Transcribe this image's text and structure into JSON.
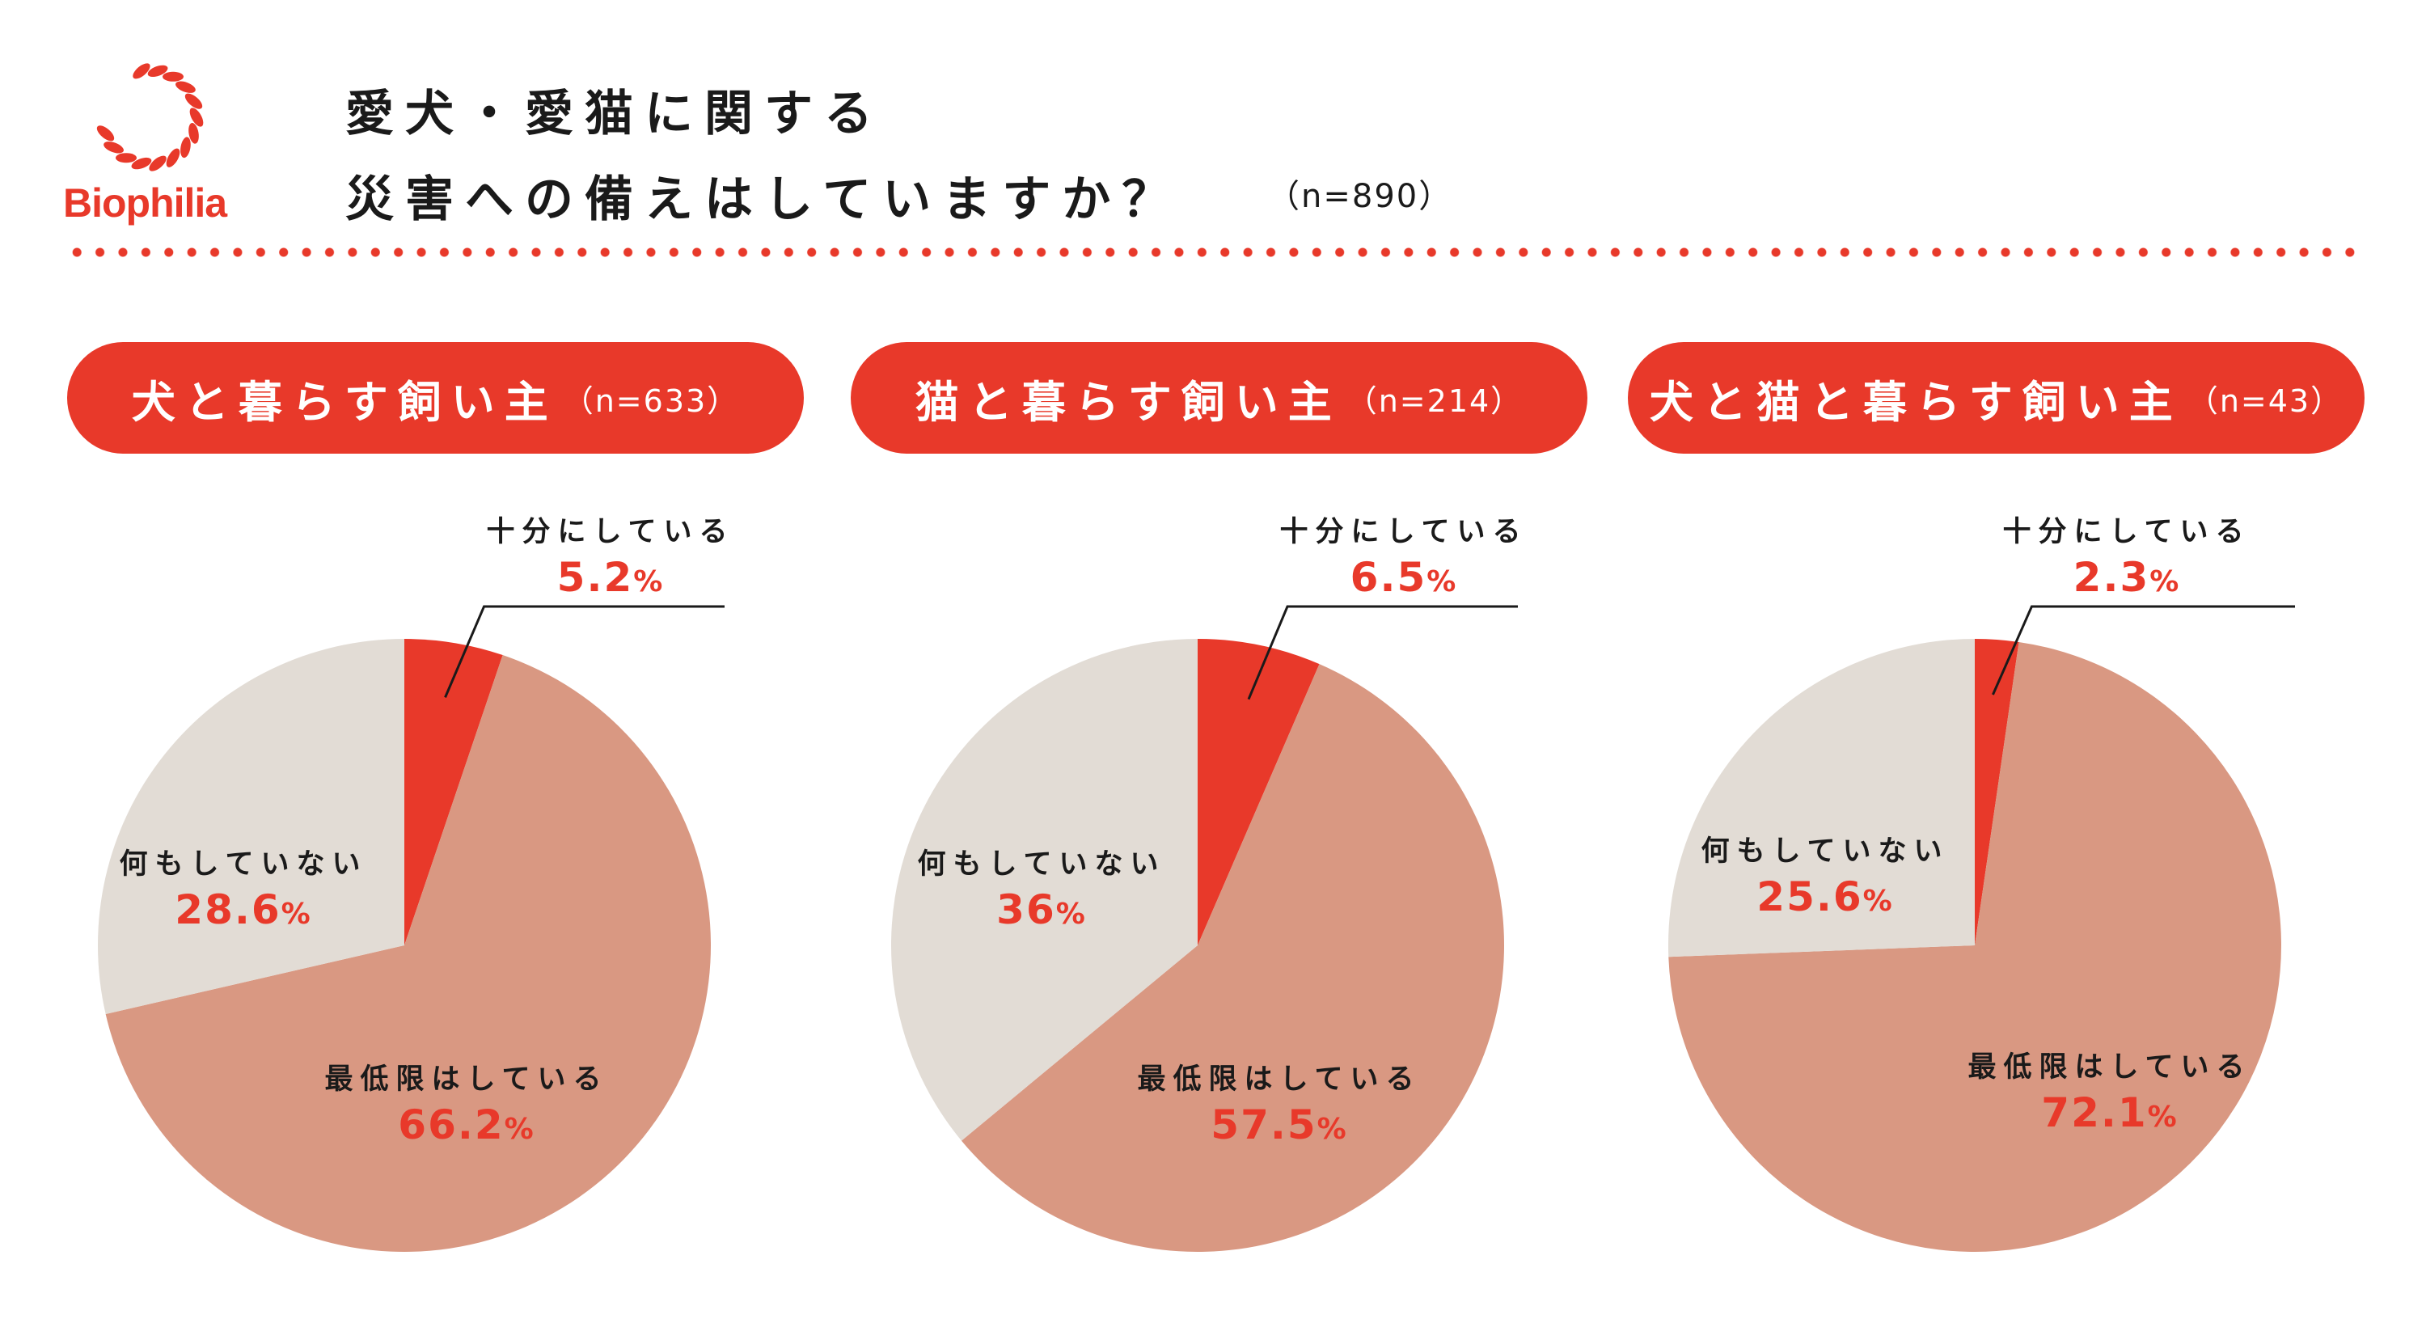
{
  "logo": {
    "text": "Biophilia"
  },
  "header": {
    "title_line1": "愛犬・愛猫に関する",
    "title_line2": "災害への備えはしていますか？",
    "n": "（n=890）"
  },
  "colors": {
    "accent": "#E8392A",
    "sufficient": "#E8392A",
    "minimum": "#D99882",
    "nothing": "#E2DCD5"
  },
  "chart_data": [
    {
      "type": "pie",
      "title": "犬と暮らす飼い主",
      "n": "（n=633）",
      "slices": [
        {
          "label": "十分にしている",
          "value": 5.2,
          "display": "5.2"
        },
        {
          "label": "最低限はしている",
          "value": 66.2,
          "display": "66.2"
        },
        {
          "label": "何もしていない",
          "value": 28.6,
          "display": "28.6"
        }
      ]
    },
    {
      "type": "pie",
      "title": "猫と暮らす飼い主",
      "n": "（n=214）",
      "slices": [
        {
          "label": "十分にしている",
          "value": 6.5,
          "display": "6.5"
        },
        {
          "label": "最低限はしている",
          "value": 57.5,
          "display": "57.5"
        },
        {
          "label": "何もしていない",
          "value": 36,
          "display": "36"
        }
      ]
    },
    {
      "type": "pie",
      "title": "犬と猫と暮らす飼い主",
      "n": "（n=43）",
      "slices": [
        {
          "label": "十分にしている",
          "value": 2.3,
          "display": "2.3"
        },
        {
          "label": "最低限はしている",
          "value": 72.1,
          "display": "72.1"
        },
        {
          "label": "何もしていない",
          "value": 25.6,
          "display": "25.6"
        }
      ]
    }
  ],
  "percent_sign": "%"
}
